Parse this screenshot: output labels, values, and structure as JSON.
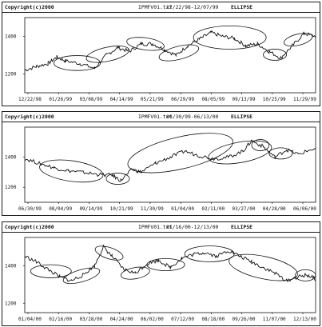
{
  "colors": {
    "ink": "#111111",
    "frame": "#1a1a1a",
    "background": "#ffffff"
  },
  "chart_data": [
    {
      "type": "line",
      "copyright": "Copyright(c)2000",
      "file": "IPMFV01.txt",
      "range_text": "12/22/98-12/07/99",
      "study": "ELLIPSE",
      "x_ticks": [
        "12/22/98",
        "01/26/99",
        "03/08/99",
        "04/14/99",
        "05/21/99",
        "06/29/99",
        "08/05/99",
        "09/13/99",
        "10/25/99",
        "11/29/99"
      ],
      "y_ticks": [
        {
          "label": "1400",
          "value": 1400
        },
        {
          "label": "1200",
          "value": 1200
        }
      ],
      "ylim": [
        1100,
        1500
      ],
      "grid": false,
      "series": [
        {
          "x": [
            0,
            0.04,
            0.08,
            0.11,
            0.14,
            0.19,
            0.24,
            0.28,
            0.32,
            0.36,
            0.4,
            0.44,
            0.48,
            0.52,
            0.56,
            0.6,
            0.64,
            0.68,
            0.72,
            0.76,
            0.8,
            0.84,
            0.88,
            0.92,
            0.96,
            1.0
          ],
          "values": [
            1220,
            1240,
            1255,
            1290,
            1270,
            1255,
            1230,
            1300,
            1340,
            1320,
            1360,
            1360,
            1330,
            1300,
            1350,
            1385,
            1420,
            1400,
            1390,
            1350,
            1360,
            1320,
            1285,
            1350,
            1415,
            1400
          ]
        }
      ],
      "ellipses": [
        {
          "x0": 0.1,
          "x1": 0.26,
          "tilt": 0
        },
        {
          "x0": 0.21,
          "x1": 0.36,
          "tilt": -12
        },
        {
          "x0": 0.35,
          "x1": 0.48,
          "tilt": 8
        },
        {
          "x0": 0.46,
          "x1": 0.6,
          "tilt": -14
        },
        {
          "x0": 0.58,
          "x1": 0.83,
          "tilt": 0
        },
        {
          "x0": 0.82,
          "x1": 0.9,
          "tilt": 0
        },
        {
          "x0": 0.89,
          "x1": 0.99,
          "tilt": -14
        }
      ]
    },
    {
      "type": "line",
      "copyright": "Copyright(c)2000",
      "file": "IPMFV01.txt",
      "range_text": "06/30/99-06/13/00",
      "study": "ELLIPSE",
      "x_ticks": [
        "06/30/99",
        "08/04/99",
        "09/14/99",
        "10/21/99",
        "11/30/99",
        "01/04/00",
        "02/11/00",
        "03/27/00",
        "04/28/00",
        "06/06/00"
      ],
      "y_ticks": [
        {
          "label": "1400",
          "value": 1400
        },
        {
          "label": "1200",
          "value": 1200
        }
      ],
      "ylim": [
        1100,
        1600
      ],
      "grid": false,
      "series": [
        {
          "x": [
            0,
            0.05,
            0.1,
            0.15,
            0.2,
            0.25,
            0.3,
            0.33,
            0.37,
            0.4,
            0.45,
            0.5,
            0.55,
            0.6,
            0.65,
            0.7,
            0.75,
            0.78,
            0.82,
            0.86,
            0.9,
            0.94,
            1.0
          ],
          "values": [
            1390,
            1360,
            1330,
            1310,
            1300,
            1285,
            1280,
            1245,
            1320,
            1300,
            1360,
            1400,
            1440,
            1410,
            1390,
            1400,
            1440,
            1510,
            1470,
            1400,
            1450,
            1420,
            1460
          ]
        }
      ],
      "ellipses": [
        {
          "x0": 0.05,
          "x1": 0.27,
          "tilt": 8
        },
        {
          "x0": 0.28,
          "x1": 0.36,
          "tilt": 0
        },
        {
          "x0": 0.35,
          "x1": 0.72,
          "tilt": -13
        },
        {
          "x0": 0.63,
          "x1": 0.85,
          "tilt": -10
        },
        {
          "x0": 0.78,
          "x1": 0.84,
          "tilt": 0
        },
        {
          "x0": 0.84,
          "x1": 0.92,
          "tilt": 0
        }
      ]
    },
    {
      "type": "line",
      "copyright": "Copyright(c)2000",
      "file": "IPMFV01.txt",
      "range_text": "01/16/00-12/13/00",
      "study": "ELLIPSE",
      "x_ticks": [
        "01/04/00",
        "02/16/00",
        "03/28/00",
        "04/24/00",
        "06/02/00",
        "07/12/00",
        "08/18/00",
        "09/26/00",
        "11/07/00",
        "12/13/00"
      ],
      "y_ticks": [
        {
          "label": "1400",
          "value": 1400
        },
        {
          "label": "1200",
          "value": 1200
        }
      ],
      "ylim": [
        1150,
        1550
      ],
      "grid": false,
      "series": [
        {
          "x": [
            0,
            0.04,
            0.08,
            0.12,
            0.16,
            0.2,
            0.24,
            0.27,
            0.3,
            0.34,
            0.38,
            0.42,
            0.46,
            0.5,
            0.54,
            0.58,
            0.62,
            0.66,
            0.7,
            0.74,
            0.78,
            0.82,
            0.86,
            0.9,
            0.94,
            0.97,
            1.0
          ],
          "values": [
            1450,
            1420,
            1380,
            1340,
            1320,
            1350,
            1400,
            1500,
            1450,
            1380,
            1360,
            1410,
            1430,
            1390,
            1440,
            1460,
            1470,
            1450,
            1480,
            1450,
            1420,
            1390,
            1360,
            1320,
            1340,
            1350,
            1330
          ]
        }
      ],
      "ellipses": [
        {
          "x0": 0.02,
          "x1": 0.16,
          "tilt": 0
        },
        {
          "x0": 0.13,
          "x1": 0.26,
          "tilt": -16
        },
        {
          "x0": 0.24,
          "x1": 0.34,
          "tilt": 18
        },
        {
          "x0": 0.33,
          "x1": 0.43,
          "tilt": -10
        },
        {
          "x0": 0.42,
          "x1": 0.55,
          "tilt": 0
        },
        {
          "x0": 0.55,
          "x1": 0.72,
          "tilt": 0
        },
        {
          "x0": 0.7,
          "x1": 0.94,
          "tilt": 12
        },
        {
          "x0": 0.93,
          "x1": 1.0,
          "tilt": 0
        }
      ]
    }
  ]
}
